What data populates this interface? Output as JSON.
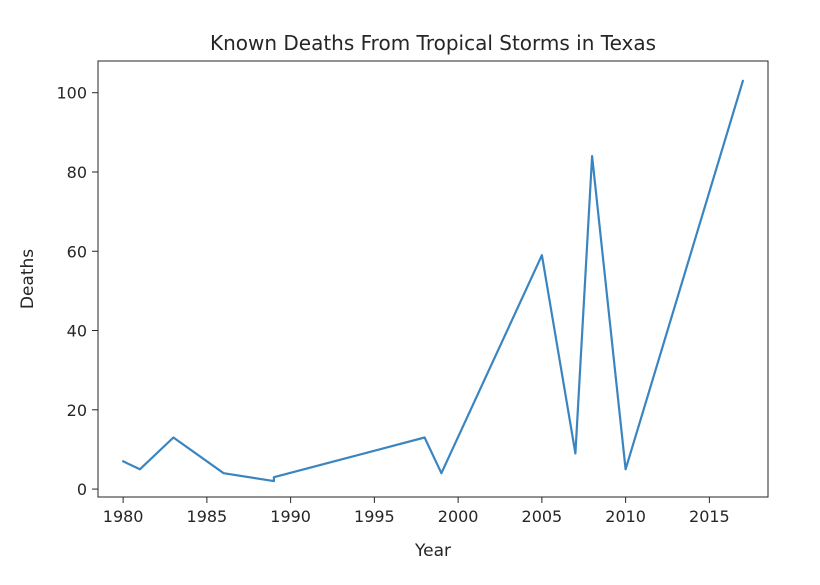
{
  "chart_data": {
    "type": "line",
    "title": "Known Deaths From Tropical Storms in Texas",
    "xlabel": "Year",
    "ylabel": "Deaths",
    "xlim": [
      1978.5,
      2018.5
    ],
    "ylim": [
      -2,
      108
    ],
    "xticks": [
      1980,
      1985,
      1990,
      1995,
      2000,
      2005,
      2010,
      2015
    ],
    "yticks": [
      0,
      20,
      40,
      60,
      80,
      100
    ],
    "grid": false,
    "series": [
      {
        "color": "#3a85c0",
        "x": [
          1980,
          1981,
          1983,
          1986,
          1989,
          1989,
          1998,
          1999,
          2005,
          2007,
          2008,
          2010,
          2017
        ],
        "y": [
          7,
          5,
          13,
          4,
          2,
          3,
          13,
          4,
          59,
          9,
          84,
          5,
          103
        ]
      }
    ]
  }
}
